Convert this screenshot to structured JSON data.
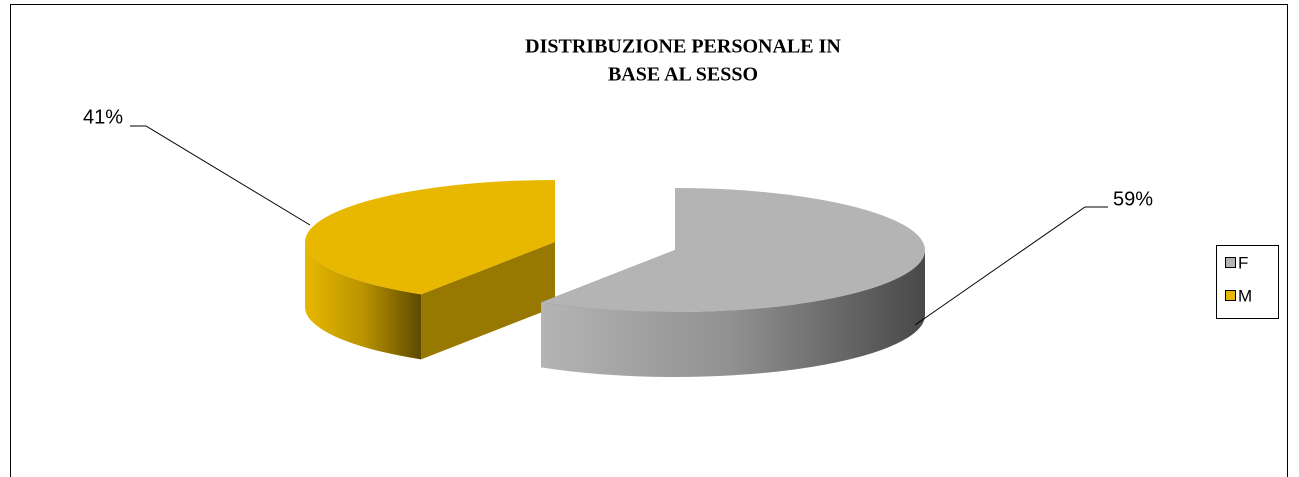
{
  "chart_data": {
    "type": "pie",
    "title": [
      "DISTRIBUZIONE PERSONALE IN",
      "BASE AL SESSO"
    ],
    "categories": [
      "F",
      "M"
    ],
    "values": [
      59,
      41
    ],
    "value_labels": [
      "59%",
      "41%"
    ],
    "colors": [
      "#b4b4b4",
      "#e8b800"
    ],
    "legend": "right"
  }
}
